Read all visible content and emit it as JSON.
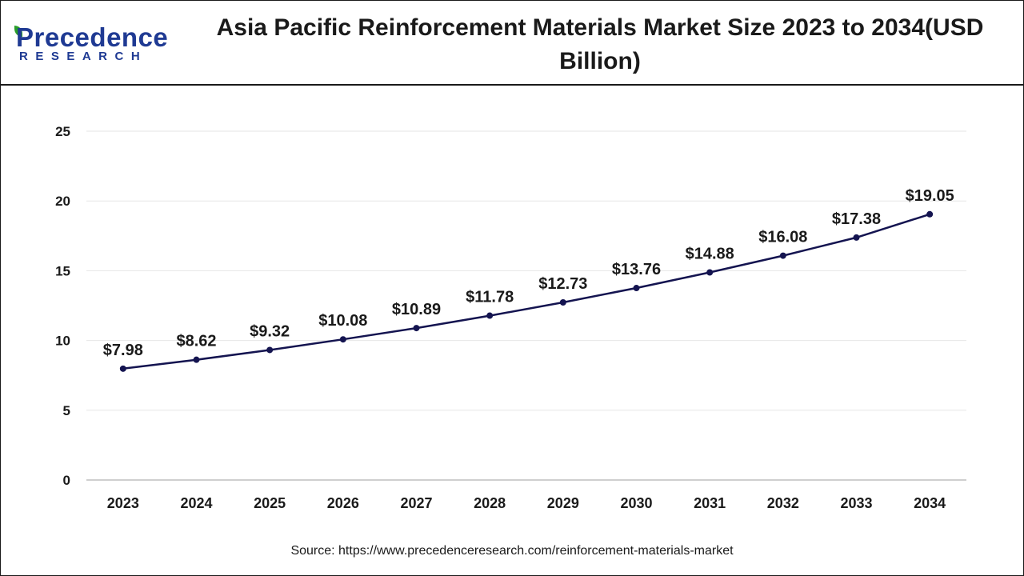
{
  "header": {
    "logo": {
      "top": "Precedence",
      "bottom": "RESEARCH"
    },
    "title": "Asia Pacific Reinforcement Materials Market Size 2023 to 2034(USD Billion)"
  },
  "chart_data": {
    "type": "line",
    "title": "Asia Pacific Reinforcement Materials Market Size 2023 to 2034(USD Billion)",
    "categories": [
      "2023",
      "2024",
      "2025",
      "2026",
      "2027",
      "2028",
      "2029",
      "2030",
      "2031",
      "2032",
      "2033",
      "2034"
    ],
    "series": [
      {
        "values": [
          7.98,
          8.62,
          9.32,
          10.08,
          10.89,
          11.78,
          12.73,
          13.76,
          14.88,
          16.08,
          17.38,
          19.05
        ]
      }
    ],
    "data_labels": [
      "$7.98",
      "$8.62",
      "$9.32",
      "$10.08",
      "$10.89",
      "$11.78",
      "$12.73",
      "$13.76",
      "$14.88",
      "$16.08",
      "$17.38",
      "$19.05"
    ],
    "yticks": [
      "0",
      "5",
      "10",
      "15",
      "20",
      "25"
    ],
    "ylim": [
      0,
      25
    ],
    "grid": true,
    "legend": "none",
    "line_color": "#141450"
  },
  "footer": {
    "source": "Source: https://www.precedenceresearch.com/reinforcement-materials-market"
  }
}
